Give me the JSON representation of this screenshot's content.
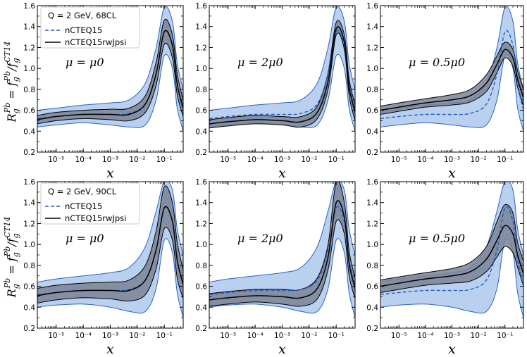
{
  "figure": {
    "ylabel_main": "R",
    "ylabel_sub": "g",
    "ylabel_sup": "Pb",
    "ylabel_eq": " = f",
    "ylabel_f1_sub": "g",
    "ylabel_f1_sup": "Pb",
    "ylabel_slash": "/f",
    "ylabel_f2_sub": "g",
    "ylabel_f2_sup": "CT14"
  },
  "colors": {
    "nctq_band": "#aec8ec",
    "nctq_edge": "#2a63c9",
    "nctq_line": "#1f5bc6",
    "rw_band": "#7a8497",
    "rw_edge": "#000000",
    "rw_line": "#000000"
  },
  "legends": [
    {
      "title": "Q = 2 GeV,  68CL",
      "entry1": "nCTEQ15",
      "entry2": "nCTEQ15rwJpsi"
    },
    {
      "title": "Q = 2 GeV,  90CL",
      "entry1": "nCTEQ15",
      "entry2": "nCTEQ15rwJpsi"
    }
  ],
  "chart_data": [
    {
      "type": "area",
      "panel": "row1-col1",
      "cl": "68CL",
      "annotation": "μ = μ0",
      "xlabel": "x",
      "xscale": "log",
      "xlim": [
        2e-06,
        0.5
      ],
      "ylim": [
        0.2,
        1.6
      ],
      "xticks": [
        "10⁻⁵",
        "10⁻⁴",
        "10⁻³",
        "10⁻²",
        "10⁻¹"
      ],
      "yticks": [
        "0.2",
        "0.4",
        "0.6",
        "0.8",
        "1.0",
        "1.2",
        "1.4",
        "1.6"
      ],
      "x": [
        2e-06,
        1e-05,
        0.0001,
        0.001,
        0.005,
        0.02,
        0.05,
        0.1,
        0.2,
        0.3,
        0.5
      ],
      "series": [
        {
          "name": "nCTEQ15 central",
          "values": [
            0.52,
            0.54,
            0.56,
            0.56,
            0.57,
            0.66,
            0.95,
            1.35,
            1.22,
            0.85,
            0.6
          ]
        },
        {
          "name": "nCTEQ15 upper",
          "values": [
            0.6,
            0.62,
            0.65,
            0.67,
            0.7,
            0.86,
            1.2,
            1.58,
            1.45,
            1.05,
            0.8
          ]
        },
        {
          "name": "nCTEQ15 lower",
          "values": [
            0.44,
            0.46,
            0.48,
            0.46,
            0.44,
            0.46,
            0.7,
            1.12,
            1.0,
            0.62,
            0.4
          ]
        },
        {
          "name": "nCTEQ15rwJpsi central",
          "values": [
            0.51,
            0.54,
            0.56,
            0.56,
            0.56,
            0.66,
            0.95,
            1.35,
            1.22,
            0.85,
            0.62
          ]
        },
        {
          "name": "nCTEQ15rwJpsi upper",
          "values": [
            0.55,
            0.58,
            0.6,
            0.61,
            0.62,
            0.74,
            1.06,
            1.46,
            1.32,
            0.95,
            0.7
          ]
        },
        {
          "name": "nCTEQ15rwJpsi lower",
          "values": [
            0.47,
            0.5,
            0.52,
            0.51,
            0.5,
            0.58,
            0.84,
            1.23,
            1.1,
            0.75,
            0.54
          ]
        }
      ]
    },
    {
      "type": "area",
      "panel": "row1-col2",
      "cl": "68CL",
      "annotation": "μ = 2μ0",
      "xlabel": "x",
      "xscale": "log",
      "xlim": [
        2e-06,
        0.5
      ],
      "ylim": [
        0.2,
        1.6
      ],
      "xticks": [
        "10⁻⁵",
        "10⁻⁴",
        "10⁻³",
        "10⁻²",
        "10⁻¹"
      ],
      "yticks": [
        "0.2",
        "0.4",
        "0.6",
        "0.8",
        "1.0",
        "1.2",
        "1.4",
        "1.6"
      ],
      "x": [
        2e-06,
        1e-05,
        0.0001,
        0.001,
        0.005,
        0.02,
        0.05,
        0.1,
        0.2,
        0.3,
        0.5
      ],
      "series": [
        {
          "name": "nCTEQ15 central",
          "values": [
            0.52,
            0.54,
            0.56,
            0.56,
            0.57,
            0.66,
            0.95,
            1.35,
            1.22,
            0.85,
            0.6
          ]
        },
        {
          "name": "nCTEQ15 upper",
          "values": [
            0.6,
            0.62,
            0.65,
            0.67,
            0.7,
            0.86,
            1.2,
            1.58,
            1.45,
            1.05,
            0.8
          ]
        },
        {
          "name": "nCTEQ15 lower",
          "values": [
            0.44,
            0.46,
            0.48,
            0.46,
            0.44,
            0.46,
            0.7,
            1.12,
            1.0,
            0.62,
            0.4
          ]
        },
        {
          "name": "nCTEQ15rwJpsi central",
          "values": [
            0.47,
            0.49,
            0.51,
            0.5,
            0.49,
            0.58,
            0.88,
            1.38,
            1.25,
            0.82,
            0.58
          ]
        },
        {
          "name": "nCTEQ15rwJpsi upper",
          "values": [
            0.51,
            0.53,
            0.55,
            0.54,
            0.54,
            0.64,
            0.96,
            1.44,
            1.32,
            0.9,
            0.65
          ]
        },
        {
          "name": "nCTEQ15rwJpsi lower",
          "values": [
            0.43,
            0.45,
            0.47,
            0.46,
            0.44,
            0.52,
            0.8,
            1.32,
            1.18,
            0.74,
            0.5
          ]
        }
      ]
    },
    {
      "type": "area",
      "panel": "row1-col3",
      "cl": "68CL",
      "annotation": "μ = 0.5μ0",
      "xlabel": "x",
      "xscale": "log",
      "xlim": [
        2e-06,
        0.5
      ],
      "ylim": [
        0.2,
        1.6
      ],
      "xticks": [
        "10⁻⁵",
        "10⁻⁴",
        "10⁻³",
        "10⁻²",
        "10⁻¹"
      ],
      "yticks": [
        "0.2",
        "0.4",
        "0.6",
        "0.8",
        "1.0",
        "1.2",
        "1.4",
        "1.6"
      ],
      "x": [
        2e-06,
        1e-05,
        0.0001,
        0.001,
        0.005,
        0.02,
        0.05,
        0.1,
        0.2,
        0.3,
        0.5
      ],
      "series": [
        {
          "name": "nCTEQ15 central",
          "values": [
            0.52,
            0.54,
            0.56,
            0.56,
            0.57,
            0.66,
            0.95,
            1.35,
            1.22,
            0.85,
            0.6
          ]
        },
        {
          "name": "nCTEQ15 upper",
          "values": [
            0.6,
            0.62,
            0.65,
            0.67,
            0.7,
            0.86,
            1.2,
            1.58,
            1.45,
            1.05,
            0.8
          ]
        },
        {
          "name": "nCTEQ15 lower",
          "values": [
            0.44,
            0.46,
            0.48,
            0.46,
            0.44,
            0.46,
            0.7,
            1.12,
            1.0,
            0.62,
            0.4
          ]
        },
        {
          "name": "nCTEQ15rwJpsi central",
          "values": [
            0.6,
            0.63,
            0.67,
            0.7,
            0.74,
            0.86,
            1.04,
            1.18,
            1.1,
            0.9,
            0.72
          ]
        },
        {
          "name": "nCTEQ15rwJpsi upper",
          "values": [
            0.64,
            0.67,
            0.71,
            0.75,
            0.8,
            0.94,
            1.12,
            1.25,
            1.18,
            0.98,
            0.8
          ]
        },
        {
          "name": "nCTEQ15rwJpsi lower",
          "values": [
            0.56,
            0.59,
            0.63,
            0.65,
            0.68,
            0.78,
            0.96,
            1.1,
            1.02,
            0.82,
            0.64
          ]
        }
      ]
    },
    {
      "type": "area",
      "panel": "row2-col1",
      "cl": "90CL",
      "annotation": "μ = μ0",
      "xlabel": "x",
      "xscale": "log",
      "xlim": [
        2e-06,
        0.5
      ],
      "ylim": [
        0.2,
        1.6
      ],
      "xticks": [
        "10⁻⁵",
        "10⁻⁴",
        "10⁻³",
        "10⁻²",
        "10⁻¹"
      ],
      "yticks": [
        "0.2",
        "0.4",
        "0.6",
        "0.8",
        "1.0",
        "1.2",
        "1.4",
        "1.6"
      ],
      "x": [
        2e-06,
        1e-05,
        0.0001,
        0.001,
        0.005,
        0.02,
        0.05,
        0.1,
        0.2,
        0.3,
        0.5
      ],
      "series": [
        {
          "name": "nCTEQ15 central",
          "values": [
            0.52,
            0.54,
            0.56,
            0.56,
            0.57,
            0.66,
            0.95,
            1.35,
            1.22,
            0.85,
            0.6
          ]
        },
        {
          "name": "nCTEQ15 upper",
          "values": [
            0.64,
            0.67,
            0.7,
            0.73,
            0.78,
            0.98,
            1.32,
            1.6,
            1.52,
            1.15,
            0.9
          ]
        },
        {
          "name": "nCTEQ15 lower",
          "values": [
            0.4,
            0.42,
            0.43,
            0.4,
            0.36,
            0.36,
            0.58,
            1.04,
            0.92,
            0.54,
            0.3
          ]
        },
        {
          "name": "nCTEQ15rwJpsi central",
          "values": [
            0.51,
            0.54,
            0.56,
            0.56,
            0.56,
            0.66,
            0.95,
            1.35,
            1.22,
            0.85,
            0.62
          ]
        },
        {
          "name": "nCTEQ15rwJpsi upper",
          "values": [
            0.58,
            0.61,
            0.63,
            0.64,
            0.66,
            0.8,
            1.13,
            1.55,
            1.4,
            1.02,
            0.76
          ]
        },
        {
          "name": "nCTEQ15rwJpsi lower",
          "values": [
            0.44,
            0.47,
            0.49,
            0.48,
            0.46,
            0.52,
            0.77,
            1.15,
            1.04,
            0.68,
            0.48
          ]
        }
      ]
    },
    {
      "type": "area",
      "panel": "row2-col2",
      "cl": "90CL",
      "annotation": "μ = 2μ0",
      "xlabel": "x",
      "xscale": "log",
      "xlim": [
        2e-06,
        0.5
      ],
      "ylim": [
        0.2,
        1.6
      ],
      "xticks": [
        "10⁻⁵",
        "10⁻⁴",
        "10⁻³",
        "10⁻²",
        "10⁻¹"
      ],
      "yticks": [
        "0.2",
        "0.4",
        "0.6",
        "0.8",
        "1.0",
        "1.2",
        "1.4",
        "1.6"
      ],
      "x": [
        2e-06,
        1e-05,
        0.0001,
        0.001,
        0.005,
        0.02,
        0.05,
        0.1,
        0.2,
        0.3,
        0.5
      ],
      "series": [
        {
          "name": "nCTEQ15 central",
          "values": [
            0.52,
            0.54,
            0.56,
            0.56,
            0.57,
            0.66,
            0.95,
            1.35,
            1.22,
            0.85,
            0.6
          ]
        },
        {
          "name": "nCTEQ15 upper",
          "values": [
            0.64,
            0.67,
            0.7,
            0.73,
            0.78,
            0.98,
            1.32,
            1.6,
            1.52,
            1.15,
            0.9
          ]
        },
        {
          "name": "nCTEQ15 lower",
          "values": [
            0.4,
            0.42,
            0.43,
            0.4,
            0.36,
            0.36,
            0.58,
            1.04,
            0.92,
            0.54,
            0.3
          ]
        },
        {
          "name": "nCTEQ15rwJpsi central",
          "values": [
            0.47,
            0.49,
            0.51,
            0.5,
            0.49,
            0.58,
            0.88,
            1.4,
            1.26,
            0.82,
            0.58
          ]
        },
        {
          "name": "nCTEQ15rwJpsi upper",
          "values": [
            0.53,
            0.55,
            0.57,
            0.57,
            0.57,
            0.68,
            1.0,
            1.6,
            1.4,
            0.94,
            0.68
          ]
        },
        {
          "name": "nCTEQ15rwJpsi lower",
          "values": [
            0.41,
            0.43,
            0.45,
            0.43,
            0.41,
            0.48,
            0.76,
            1.22,
            1.1,
            0.7,
            0.48
          ]
        }
      ]
    },
    {
      "type": "area",
      "panel": "row2-col3",
      "cl": "90CL",
      "annotation": "μ = 0.5μ0",
      "xlabel": "x",
      "xscale": "log",
      "xlim": [
        2e-06,
        0.5
      ],
      "ylim": [
        0.2,
        1.6
      ],
      "xticks": [
        "10⁻⁵",
        "10⁻⁴",
        "10⁻³",
        "10⁻²",
        "10⁻¹"
      ],
      "yticks": [
        "0.2",
        "0.4",
        "0.6",
        "0.8",
        "1.0",
        "1.2",
        "1.4",
        "1.6"
      ],
      "x": [
        2e-06,
        1e-05,
        0.0001,
        0.001,
        0.005,
        0.02,
        0.05,
        0.1,
        0.2,
        0.3,
        0.5
      ],
      "series": [
        {
          "name": "nCTEQ15 central",
          "values": [
            0.52,
            0.54,
            0.56,
            0.56,
            0.57,
            0.66,
            0.95,
            1.35,
            1.22,
            0.85,
            0.6
          ]
        },
        {
          "name": "nCTEQ15 upper",
          "values": [
            0.64,
            0.67,
            0.7,
            0.73,
            0.78,
            0.98,
            1.32,
            1.6,
            1.52,
            1.15,
            0.9
          ]
        },
        {
          "name": "nCTEQ15 lower",
          "values": [
            0.4,
            0.42,
            0.43,
            0.4,
            0.36,
            0.36,
            0.58,
            1.04,
            0.92,
            0.54,
            0.3
          ]
        },
        {
          "name": "nCTEQ15rwJpsi central",
          "values": [
            0.6,
            0.63,
            0.67,
            0.7,
            0.74,
            0.86,
            1.04,
            1.18,
            1.1,
            0.9,
            0.72
          ]
        },
        {
          "name": "nCTEQ15rwJpsi upper",
          "values": [
            0.66,
            0.69,
            0.73,
            0.77,
            0.83,
            0.98,
            1.22,
            1.38,
            1.3,
            1.02,
            0.84
          ]
        },
        {
          "name": "nCTEQ15rwJpsi lower",
          "values": [
            0.54,
            0.57,
            0.61,
            0.63,
            0.65,
            0.74,
            0.88,
            0.98,
            0.92,
            0.78,
            0.6
          ]
        }
      ]
    }
  ]
}
